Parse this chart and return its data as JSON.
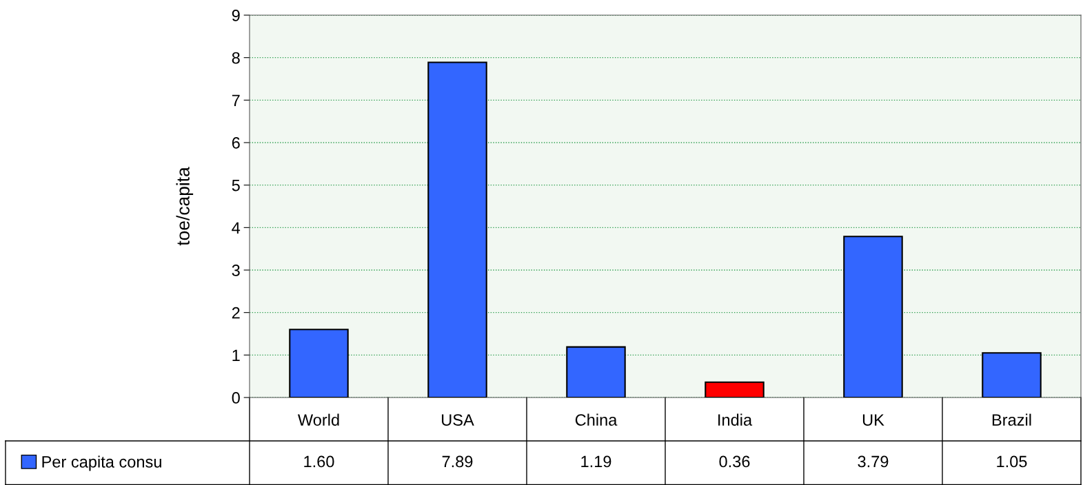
{
  "chart_data": {
    "type": "bar",
    "ylabel": "toe/capita",
    "categories": [
      "World",
      "USA",
      "China",
      "India",
      "UK",
      "Brazil"
    ],
    "series": [
      {
        "name": "Per capita consu",
        "color": "#3366ff",
        "colors": [
          "#3366ff",
          "#3366ff",
          "#3366ff",
          "#ff0000",
          "#3366ff",
          "#3366ff"
        ],
        "values": [
          1.6,
          7.89,
          1.19,
          0.36,
          3.79,
          1.05
        ],
        "value_labels": [
          "1.60",
          "7.89",
          "1.19",
          "0.36",
          "3.79",
          "1.05"
        ]
      }
    ],
    "ylim": [
      0,
      9
    ],
    "yticks": [
      0,
      1,
      2,
      3,
      4,
      5,
      6,
      7,
      8,
      9
    ],
    "grid": "y",
    "legend": "bottom left"
  }
}
